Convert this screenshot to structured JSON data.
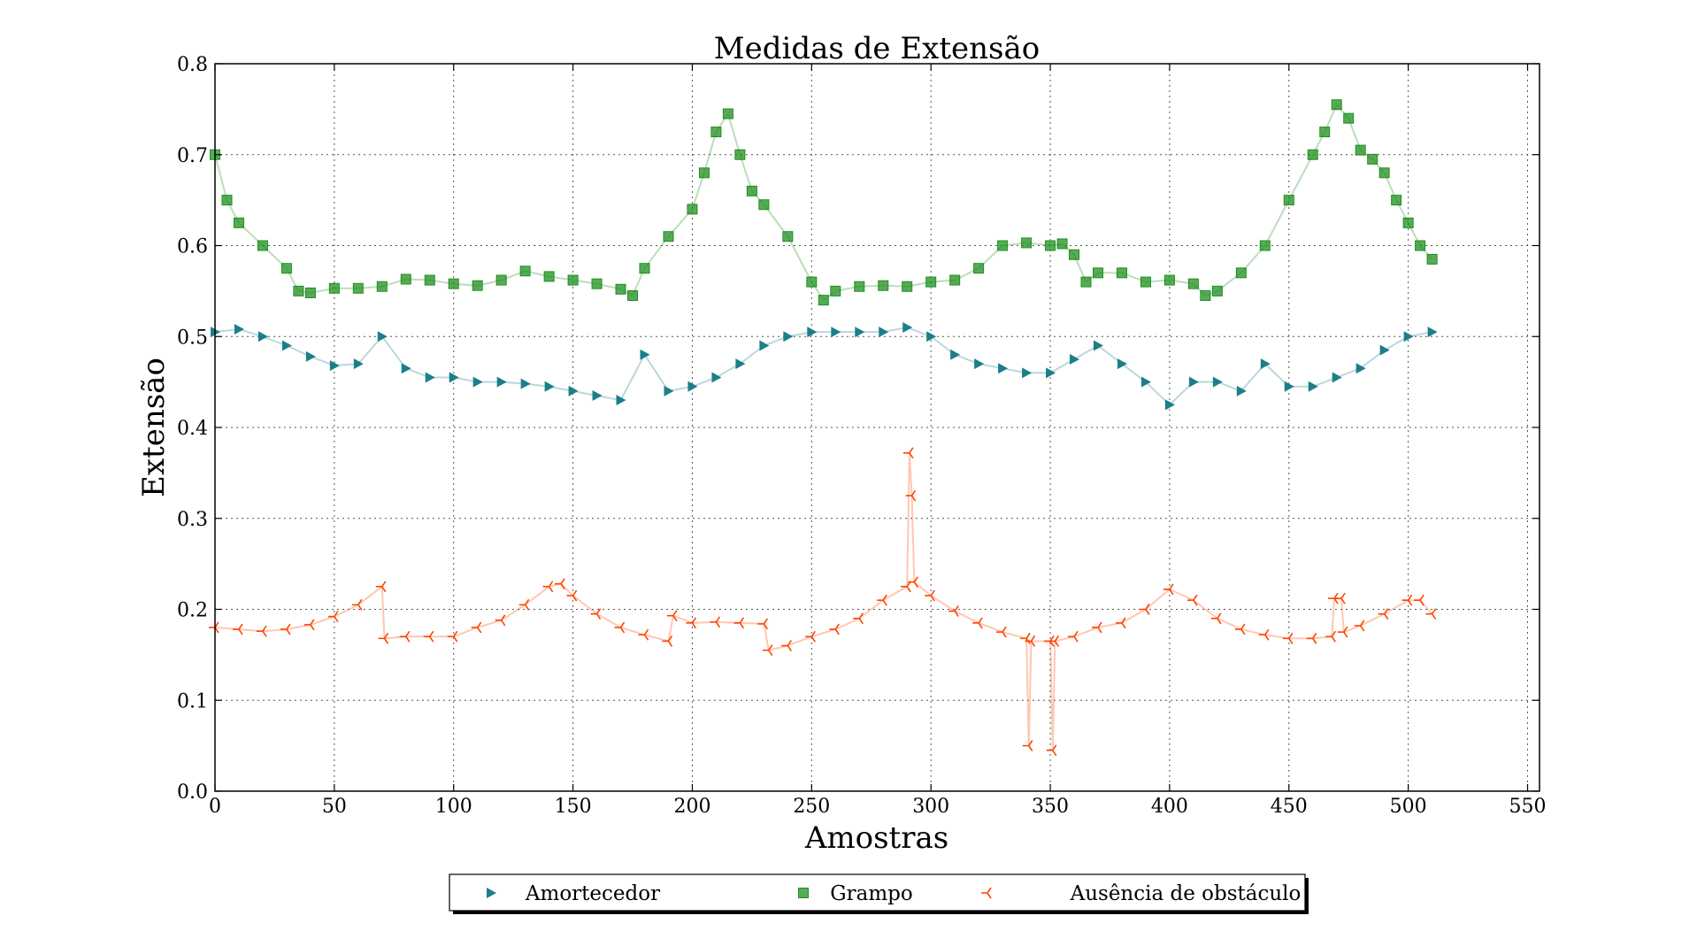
{
  "chart_data": {
    "type": "line",
    "title": "Medidas de Extensão",
    "xlabel": "Amostras",
    "ylabel": "Extensão",
    "xlim": [
      0,
      555
    ],
    "ylim": [
      0.0,
      0.8
    ],
    "xticks": [
      "0",
      "50",
      "100",
      "150",
      "200",
      "250",
      "300",
      "350",
      "400",
      "450",
      "500",
      "550"
    ],
    "yticks": [
      "0.0",
      "0.1",
      "0.2",
      "0.3",
      "0.4",
      "0.5",
      "0.6",
      "0.7",
      "0.8"
    ],
    "grid": true,
    "legend_position": "bottom-center",
    "series": [
      {
        "name": "Amortecedor",
        "marker": "triangle-right",
        "color": "#1b7f8a",
        "points": [
          [
            0,
            0.505
          ],
          [
            10,
            0.508
          ],
          [
            20,
            0.5
          ],
          [
            30,
            0.49
          ],
          [
            40,
            0.478
          ],
          [
            50,
            0.468
          ],
          [
            60,
            0.47
          ],
          [
            70,
            0.5
          ],
          [
            80,
            0.465
          ],
          [
            90,
            0.455
          ],
          [
            100,
            0.455
          ],
          [
            110,
            0.45
          ],
          [
            120,
            0.45
          ],
          [
            130,
            0.448
          ],
          [
            140,
            0.445
          ],
          [
            150,
            0.44
          ],
          [
            160,
            0.435
          ],
          [
            170,
            0.43
          ],
          [
            180,
            0.48
          ],
          [
            190,
            0.44
          ],
          [
            200,
            0.445
          ],
          [
            210,
            0.455
          ],
          [
            220,
            0.47
          ],
          [
            230,
            0.49
          ],
          [
            240,
            0.5
          ],
          [
            250,
            0.505
          ],
          [
            260,
            0.505
          ],
          [
            270,
            0.505
          ],
          [
            280,
            0.505
          ],
          [
            290,
            0.51
          ],
          [
            300,
            0.5
          ],
          [
            310,
            0.48
          ],
          [
            320,
            0.47
          ],
          [
            330,
            0.465
          ],
          [
            340,
            0.46
          ],
          [
            350,
            0.46
          ],
          [
            360,
            0.475
          ],
          [
            370,
            0.49
          ],
          [
            380,
            0.47
          ],
          [
            390,
            0.45
          ],
          [
            400,
            0.425
          ],
          [
            410,
            0.45
          ],
          [
            420,
            0.45
          ],
          [
            430,
            0.44
          ],
          [
            440,
            0.47
          ],
          [
            450,
            0.445
          ],
          [
            460,
            0.445
          ],
          [
            470,
            0.455
          ],
          [
            480,
            0.465
          ],
          [
            490,
            0.485
          ],
          [
            500,
            0.5
          ],
          [
            510,
            0.505
          ]
        ]
      },
      {
        "name": "Grampo",
        "marker": "square",
        "color": "#1f8f1f",
        "points": [
          [
            0,
            0.7
          ],
          [
            5,
            0.65
          ],
          [
            10,
            0.625
          ],
          [
            20,
            0.6
          ],
          [
            30,
            0.575
          ],
          [
            35,
            0.55
          ],
          [
            40,
            0.548
          ],
          [
            50,
            0.553
          ],
          [
            60,
            0.553
          ],
          [
            70,
            0.555
          ],
          [
            80,
            0.563
          ],
          [
            90,
            0.562
          ],
          [
            100,
            0.558
          ],
          [
            110,
            0.556
          ],
          [
            120,
            0.562
          ],
          [
            130,
            0.572
          ],
          [
            140,
            0.566
          ],
          [
            150,
            0.562
          ],
          [
            160,
            0.558
          ],
          [
            170,
            0.552
          ],
          [
            175,
            0.545
          ],
          [
            180,
            0.575
          ],
          [
            190,
            0.61
          ],
          [
            200,
            0.64
          ],
          [
            205,
            0.68
          ],
          [
            210,
            0.725
          ],
          [
            215,
            0.745
          ],
          [
            220,
            0.7
          ],
          [
            225,
            0.66
          ],
          [
            230,
            0.645
          ],
          [
            240,
            0.61
          ],
          [
            250,
            0.56
          ],
          [
            255,
            0.54
          ],
          [
            260,
            0.55
          ],
          [
            270,
            0.555
          ],
          [
            280,
            0.556
          ],
          [
            290,
            0.555
          ],
          [
            300,
            0.56
          ],
          [
            310,
            0.562
          ],
          [
            320,
            0.575
          ],
          [
            330,
            0.6
          ],
          [
            340,
            0.603
          ],
          [
            350,
            0.6
          ],
          [
            355,
            0.602
          ],
          [
            360,
            0.59
          ],
          [
            365,
            0.56
          ],
          [
            370,
            0.57
          ],
          [
            380,
            0.57
          ],
          [
            390,
            0.56
          ],
          [
            400,
            0.562
          ],
          [
            410,
            0.558
          ],
          [
            415,
            0.545
          ],
          [
            420,
            0.55
          ],
          [
            430,
            0.57
          ],
          [
            440,
            0.6
          ],
          [
            450,
            0.65
          ],
          [
            460,
            0.7
          ],
          [
            465,
            0.725
          ],
          [
            470,
            0.755
          ],
          [
            475,
            0.74
          ],
          [
            480,
            0.705
          ],
          [
            485,
            0.695
          ],
          [
            490,
            0.68
          ],
          [
            495,
            0.65
          ],
          [
            500,
            0.625
          ],
          [
            505,
            0.6
          ],
          [
            510,
            0.585
          ]
        ]
      },
      {
        "name": "Ausência de obstáculo",
        "marker": "tri-left",
        "color": "#ff4500",
        "points": [
          [
            0,
            0.18
          ],
          [
            10,
            0.178
          ],
          [
            20,
            0.176
          ],
          [
            30,
            0.178
          ],
          [
            40,
            0.183
          ],
          [
            50,
            0.192
          ],
          [
            60,
            0.205
          ],
          [
            70,
            0.225
          ],
          [
            71,
            0.168
          ],
          [
            80,
            0.17
          ],
          [
            90,
            0.17
          ],
          [
            100,
            0.17
          ],
          [
            110,
            0.18
          ],
          [
            120,
            0.188
          ],
          [
            130,
            0.205
          ],
          [
            140,
            0.225
          ],
          [
            145,
            0.228
          ],
          [
            150,
            0.215
          ],
          [
            160,
            0.195
          ],
          [
            170,
            0.18
          ],
          [
            180,
            0.172
          ],
          [
            190,
            0.165
          ],
          [
            192,
            0.193
          ],
          [
            200,
            0.185
          ],
          [
            210,
            0.186
          ],
          [
            220,
            0.185
          ],
          [
            230,
            0.184
          ],
          [
            232,
            0.155
          ],
          [
            240,
            0.16
          ],
          [
            250,
            0.17
          ],
          [
            260,
            0.178
          ],
          [
            270,
            0.19
          ],
          [
            280,
            0.21
          ],
          [
            290,
            0.225
          ],
          [
            291,
            0.372
          ],
          [
            292,
            0.325
          ],
          [
            293,
            0.23
          ],
          [
            300,
            0.215
          ],
          [
            310,
            0.198
          ],
          [
            320,
            0.185
          ],
          [
            330,
            0.175
          ],
          [
            340,
            0.168
          ],
          [
            341,
            0.05
          ],
          [
            342,
            0.165
          ],
          [
            350,
            0.165
          ],
          [
            351,
            0.045
          ],
          [
            352,
            0.165
          ],
          [
            360,
            0.17
          ],
          [
            370,
            0.18
          ],
          [
            380,
            0.185
          ],
          [
            390,
            0.2
          ],
          [
            400,
            0.222
          ],
          [
            410,
            0.21
          ],
          [
            420,
            0.19
          ],
          [
            430,
            0.178
          ],
          [
            440,
            0.172
          ],
          [
            450,
            0.168
          ],
          [
            460,
            0.168
          ],
          [
            468,
            0.17
          ],
          [
            469,
            0.212
          ],
          [
            472,
            0.212
          ],
          [
            473,
            0.175
          ],
          [
            480,
            0.182
          ],
          [
            490,
            0.195
          ],
          [
            500,
            0.21
          ],
          [
            505,
            0.21
          ],
          [
            510,
            0.195
          ]
        ]
      }
    ]
  }
}
